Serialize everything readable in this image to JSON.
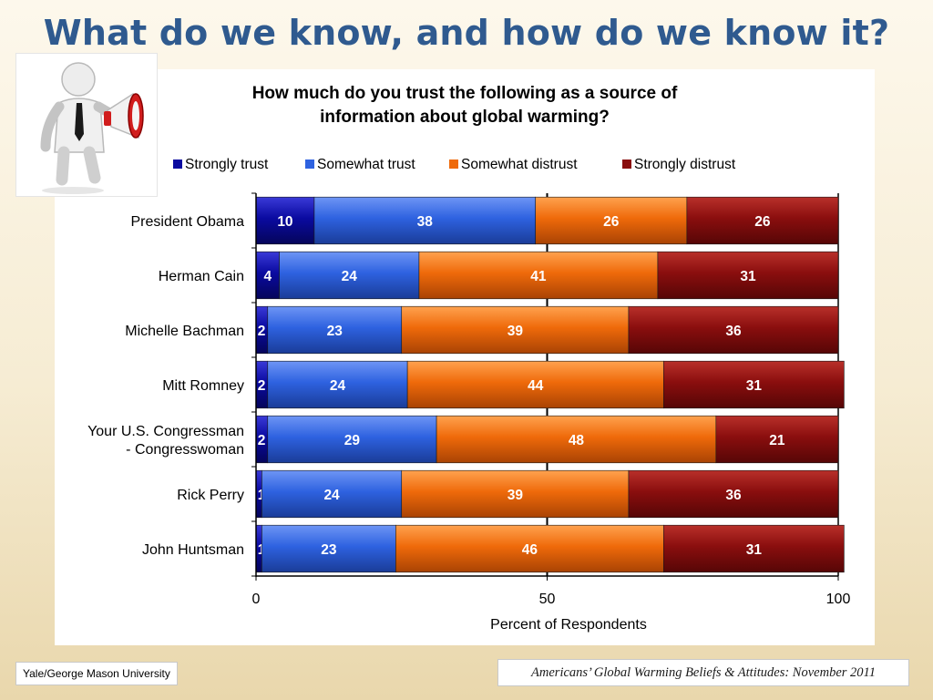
{
  "slide": {
    "title": "What do we know, and how do we know it?",
    "footer_left": "Yale/George Mason University",
    "footer_right": "Americans’ Global Warming Beliefs & Attitudes: November 2011"
  },
  "chart_data": {
    "type": "bar",
    "orientation": "horizontal",
    "stacked": true,
    "title": "How much do you trust the following as a source of information about global warming?",
    "title_lines": [
      "How much do you trust the following as a source of",
      "information about global warming?"
    ],
    "xlabel": "Percent of Respondents",
    "ylabel": "",
    "xlim": [
      0,
      100
    ],
    "xticks": [
      0,
      50,
      100
    ],
    "grid": "vertical at 50",
    "legend_position": "top",
    "categories": [
      [
        "President Obama"
      ],
      [
        "Herman Cain"
      ],
      [
        "Michelle Bachman"
      ],
      [
        "Mitt Romney"
      ],
      [
        "Your U.S. Congressman",
        "- Congresswoman"
      ],
      [
        "Rick Perry"
      ],
      [
        "John Huntsman"
      ]
    ],
    "series": [
      {
        "name": "Strongly trust",
        "color": "#0a0aa0",
        "values": [
          10,
          4,
          2,
          2,
          2,
          1,
          1
        ]
      },
      {
        "name": "Somewhat trust",
        "color": "#2e62e0",
        "values": [
          38,
          24,
          23,
          24,
          29,
          24,
          23
        ]
      },
      {
        "name": "Somewhat distrust",
        "color": "#ef6a0a",
        "values": [
          26,
          41,
          39,
          44,
          48,
          39,
          46
        ]
      },
      {
        "name": "Strongly distrust",
        "color": "#8a0e0e",
        "values": [
          26,
          31,
          36,
          31,
          21,
          36,
          31
        ]
      }
    ]
  },
  "icons": {
    "clipart": "person-with-megaphone-icon"
  }
}
